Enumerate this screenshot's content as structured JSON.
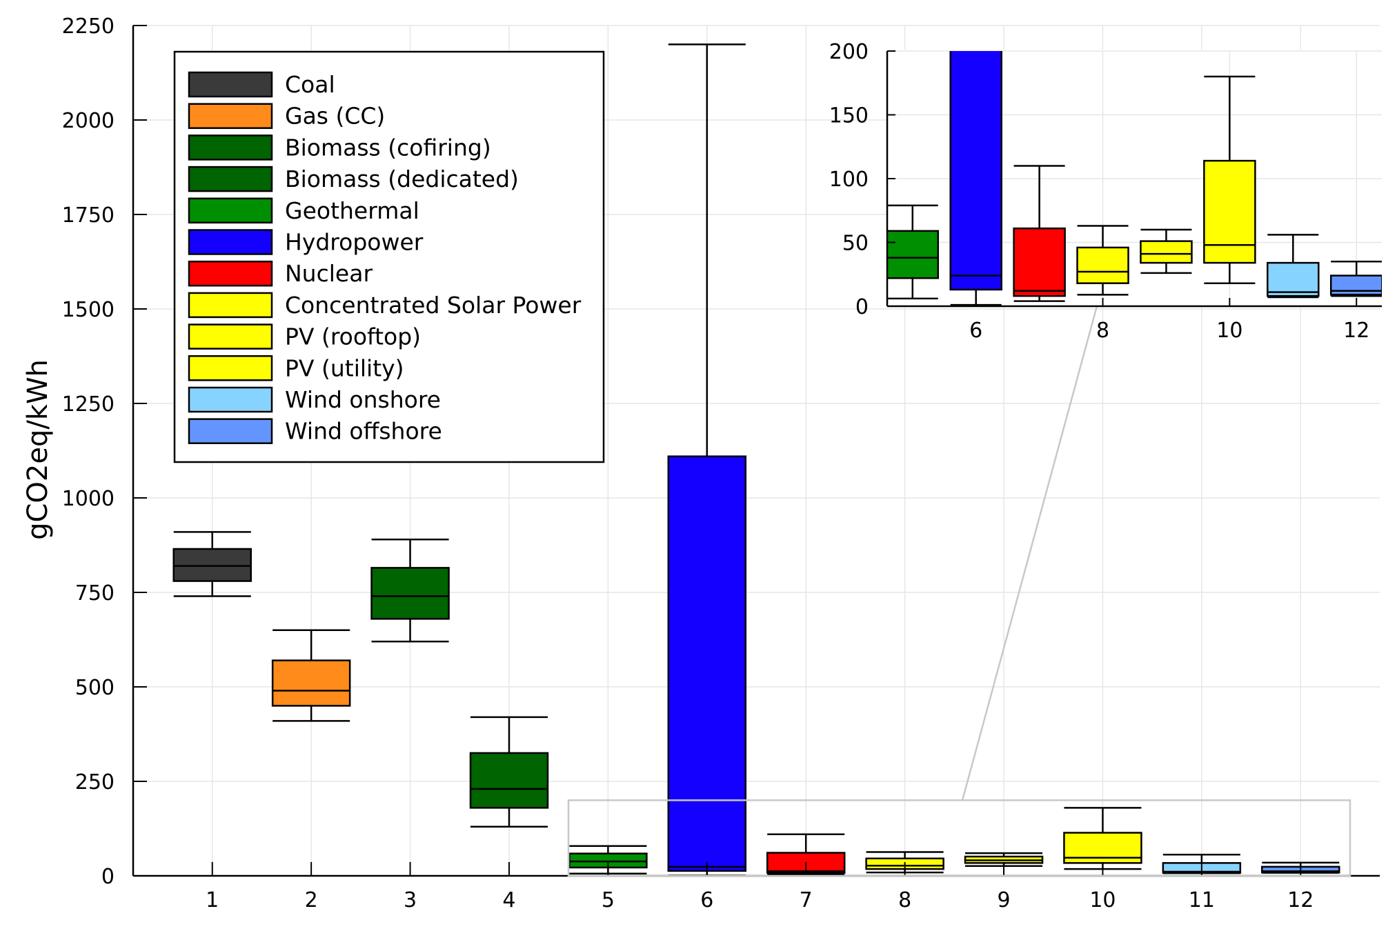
{
  "chart_data": {
    "type": "box",
    "ylabel": "gCO2eq/kWh",
    "x": [
      1,
      2,
      3,
      4,
      5,
      6,
      7,
      8,
      9,
      10,
      11,
      12
    ],
    "ylim": [
      0,
      2250
    ],
    "yticks": [
      0,
      250,
      500,
      750,
      1000,
      1250,
      1500,
      1750,
      2000,
      2250
    ],
    "xlim": [
      0.2,
      12.8
    ],
    "grid": true,
    "legend_position": "top-left",
    "series": [
      {
        "name": "Coal",
        "x": 1,
        "color": "#3a3a3a",
        "min": 740,
        "q1": 780,
        "median": 820,
        "q3": 865,
        "max": 910
      },
      {
        "name": "Gas (CC)",
        "x": 2,
        "color": "#ff8c1a",
        "min": 410,
        "q1": 450,
        "median": 490,
        "q3": 570,
        "max": 650
      },
      {
        "name": "Biomass (cofiring)",
        "x": 3,
        "color": "#006400",
        "min": 620,
        "q1": 680,
        "median": 740,
        "q3": 815,
        "max": 890
      },
      {
        "name": "Biomass (dedicated)",
        "x": 4,
        "color": "#006400",
        "min": 130,
        "q1": 180,
        "median": 230,
        "q3": 325,
        "max": 420
      },
      {
        "name": "Geothermal",
        "x": 5,
        "color": "#008f00",
        "min": 6,
        "q1": 22,
        "median": 38,
        "q3": 59,
        "max": 79
      },
      {
        "name": "Hydropower",
        "x": 6,
        "color": "#1400ff",
        "min": 1,
        "q1": 13,
        "median": 24,
        "q3": 1110,
        "max": 2200
      },
      {
        "name": "Nuclear",
        "x": 7,
        "color": "#ff0000",
        "min": 4,
        "q1": 8,
        "median": 12,
        "q3": 61,
        "max": 110
      },
      {
        "name": "Concentrated Solar Power",
        "x": 8,
        "color": "#ffff00",
        "min": 9,
        "q1": 18,
        "median": 27,
        "q3": 46,
        "max": 63
      },
      {
        "name": "PV (rooftop)",
        "x": 9,
        "color": "#ffff00",
        "min": 26,
        "q1": 34,
        "median": 41,
        "q3": 51,
        "max": 60
      },
      {
        "name": "PV (utility)",
        "x": 10,
        "color": "#ffff00",
        "min": 18,
        "q1": 34,
        "median": 48,
        "q3": 114,
        "max": 180
      },
      {
        "name": "Wind onshore",
        "x": 11,
        "color": "#87d3ff",
        "min": 7,
        "q1": 8,
        "median": 11,
        "q3": 34,
        "max": 56
      },
      {
        "name": "Wind offshore",
        "x": 12,
        "color": "#6495ff",
        "min": 8,
        "q1": 9,
        "median": 12,
        "q3": 24,
        "max": 35
      }
    ],
    "inset": {
      "xlim": [
        4.6,
        12.4
      ],
      "ylim": [
        0,
        200
      ],
      "xticks": [
        6,
        8,
        10,
        12
      ],
      "yticks": [
        0,
        50,
        100,
        150,
        200
      ],
      "zoom_region": {
        "x": [
          4.6,
          12.5
        ],
        "y": [
          0,
          200
        ]
      }
    }
  }
}
